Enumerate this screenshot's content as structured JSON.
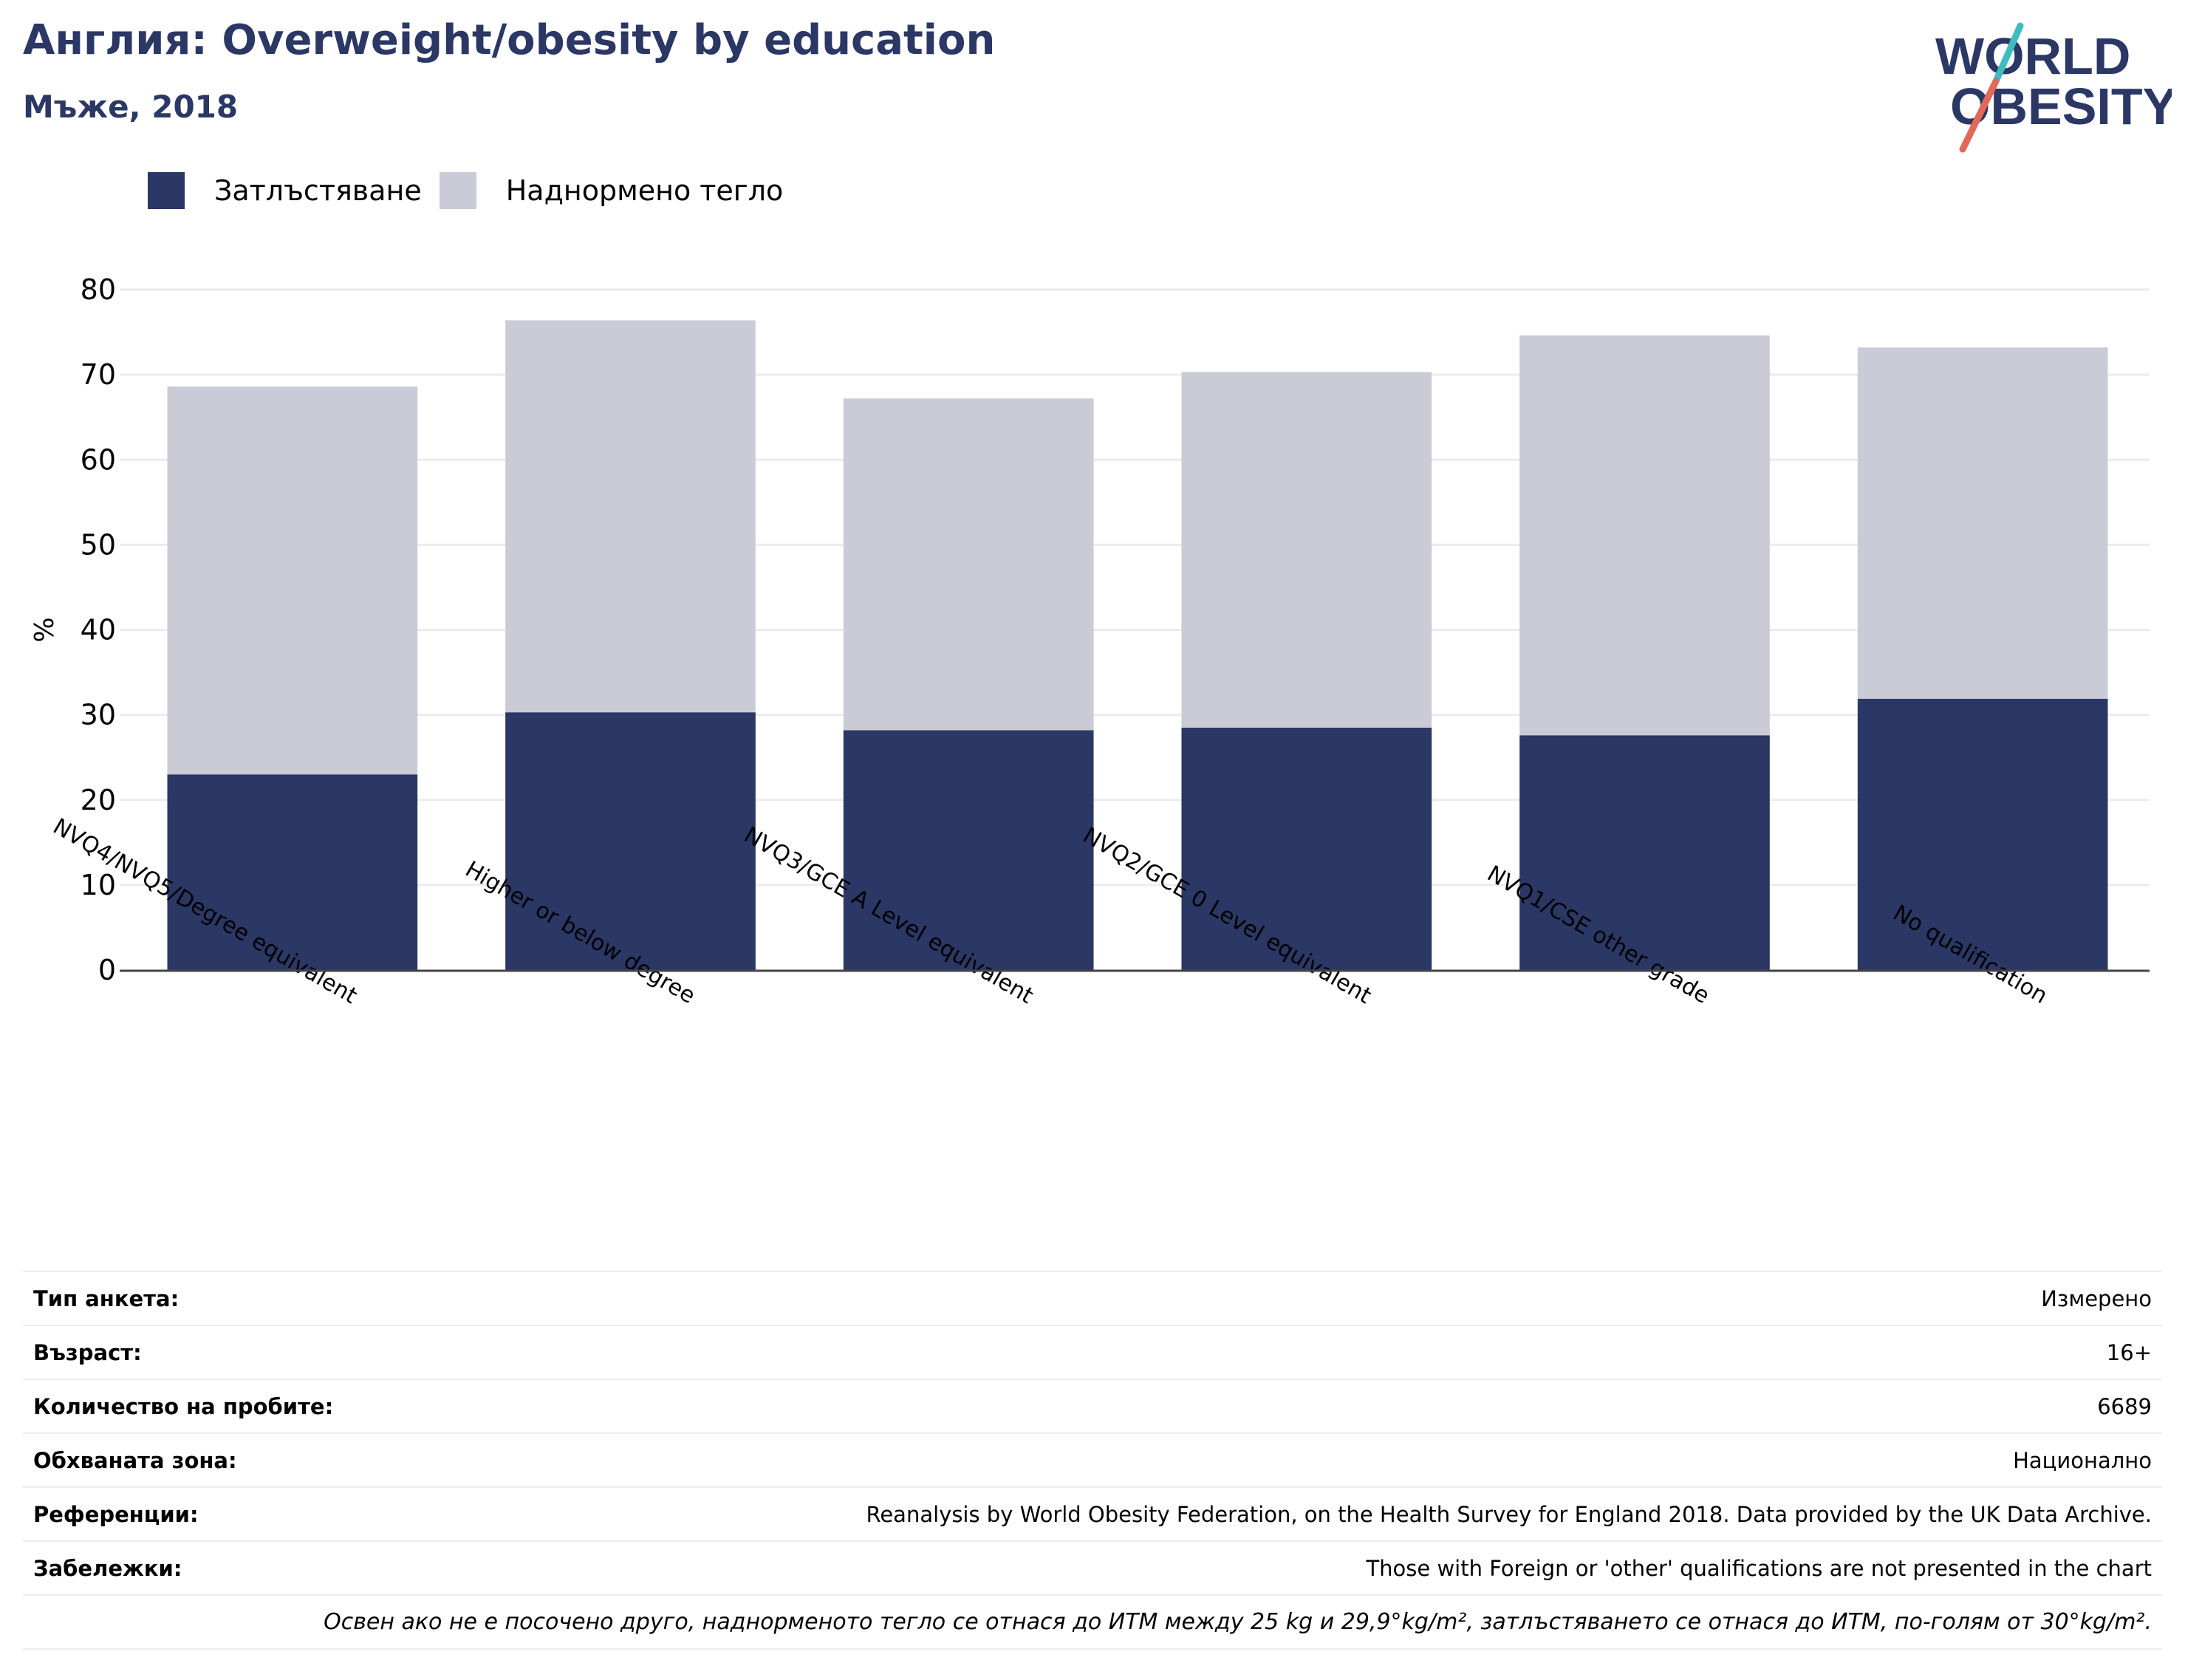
{
  "title": "Англия: Overweight/obesity by education",
  "subtitle": "Мъже, 2018",
  "logo": {
    "line1": "WORLD",
    "line2": "OBESITY",
    "color_text": "#2b3764",
    "color_teal": "#3fbcc0",
    "color_red": "#e2685a"
  },
  "colors": {
    "obesity": "#2b3764",
    "overweight": "#cacbd7",
    "text_dark": "#2b3764",
    "grid": "#ebebf0",
    "axis": "#444444"
  },
  "chart_data": {
    "type": "bar",
    "stacked": true,
    "categories": [
      "NVQ4/NVQ5/Degree equivalent",
      "Higher or below degree",
      "NVQ3/GCE A Level equivalent",
      "NVQ2/GCE 0 Level equivalent",
      "NVQ1/CSE other grade",
      "No qualification"
    ],
    "series": [
      {
        "name": "Затлъстяване",
        "values": [
          23.0,
          30.3,
          28.2,
          28.5,
          27.6,
          31.9
        ]
      },
      {
        "name": "Наднормено тегло",
        "values": [
          45.6,
          46.1,
          39.0,
          41.8,
          47.0,
          41.3
        ]
      }
    ],
    "ylabel": "%",
    "ylim": [
      0,
      80
    ],
    "yticks": [
      "0",
      "10",
      "20",
      "30",
      "40",
      "50",
      "60",
      "70",
      "80"
    ],
    "grid": true,
    "legend_position": "top-left"
  },
  "info": [
    {
      "label": "Тип анкета:",
      "value": "Измерено"
    },
    {
      "label": "Възраст:",
      "value": "16+"
    },
    {
      "label": "Количество на пробите:",
      "value": "6689"
    },
    {
      "label": "Обхваната зона:",
      "value": "Национално"
    },
    {
      "label": "Референции:",
      "value": "Reanalysis by World Obesity Federation, on the Health Survey for England 2018. Data provided by the UK Data Archive."
    },
    {
      "label": "Забележки:",
      "value": "Those with Foreign or 'other' qualifications are not presented in the chart"
    }
  ],
  "footnote": "Освен ако не е посочено друго, наднорменото тегло се отнася до ИТМ между 25 kg и 29,9°kg/m², затлъстяването се отнася до ИТМ, по-голям от 30°kg/m²."
}
